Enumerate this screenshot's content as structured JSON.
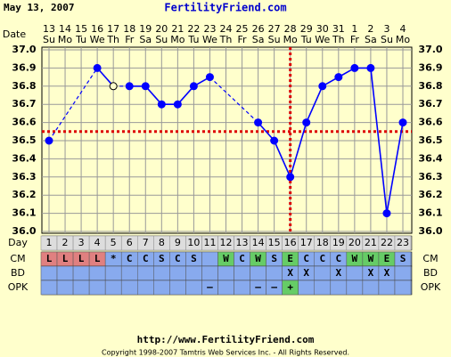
{
  "chart_data": {
    "type": "line",
    "date_text": "May 13, 2007",
    "title": "FertilityFriend.com",
    "date_axis_label": "Date",
    "date_labels": [
      "13",
      "14",
      "15",
      "16",
      "17",
      "18",
      "19",
      "20",
      "21",
      "22",
      "23",
      "24",
      "25",
      "26",
      "27",
      "28",
      "29",
      "30",
      "31",
      "1",
      "2",
      "3",
      "4"
    ],
    "weekdays": [
      "Su",
      "Mo",
      "Tu",
      "We",
      "Th",
      "Fr",
      "Sa",
      "Su",
      "Mo",
      "Tu",
      "We",
      "Th",
      "Fr",
      "Sa",
      "Su",
      "Mo",
      "Tu",
      "We",
      "Th",
      "Fr",
      "Sa",
      "Su",
      "Mo"
    ],
    "day_label": "Day",
    "x": [
      1,
      2,
      3,
      4,
      5,
      6,
      7,
      8,
      9,
      10,
      11,
      12,
      13,
      14,
      15,
      16,
      17,
      18,
      19,
      20,
      21,
      22,
      23
    ],
    "xlim": [
      1,
      23
    ],
    "values": [
      36.5,
      null,
      null,
      36.9,
      36.8,
      36.8,
      36.8,
      36.7,
      36.7,
      36.8,
      36.85,
      null,
      null,
      36.6,
      36.5,
      36.3,
      36.6,
      36.8,
      36.85,
      36.9,
      36.9,
      36.1,
      36.6
    ],
    "color": "#0000ff",
    "hollow_indices": [
      4
    ],
    "ylim": [
      36.0,
      37.0
    ],
    "yticks": [
      {
        "value": 37.0,
        "label": "37.0"
      },
      36.9,
      36.8,
      36.7,
      36.6,
      36.5,
      36.4,
      36.3,
      36.2,
      36.1,
      {
        "value": 36.0,
        "label": "36.0"
      }
    ],
    "grid": true,
    "coverline": 36.55,
    "ovulation_day": 16,
    "marker_color": "#dd0000",
    "rows": [
      {
        "label": "CM",
        "values": [
          "L",
          "L",
          "L",
          "L",
          "*",
          "C",
          "C",
          "S",
          "C",
          "S",
          null,
          "W",
          "C",
          "W",
          "S",
          "E",
          "C",
          "C",
          "C",
          "W",
          "W",
          "E",
          "S"
        ]
      },
      {
        "label": "BD",
        "values": [
          null,
          null,
          null,
          null,
          null,
          null,
          null,
          null,
          null,
          null,
          null,
          null,
          null,
          null,
          null,
          "X",
          "X",
          null,
          "X",
          null,
          "X",
          "X",
          null
        ]
      },
      {
        "label": "OPK",
        "values": [
          null,
          null,
          null,
          null,
          null,
          null,
          null,
          null,
          null,
          null,
          "–",
          null,
          null,
          "–",
          "–",
          "+",
          null,
          null,
          null,
          null,
          null,
          null,
          null
        ]
      }
    ],
    "cell_color": "#88aaee",
    "code_colors": {
      "L": "#e08080",
      "W": "#66cc66",
      "E": "#66cc66",
      "+": "#66cc66"
    },
    "url": "http://www.FertilityFriend.com",
    "copyright": "Copyright 1998-2007 Tamtris Web Services Inc. - All Rights Reserved."
  }
}
